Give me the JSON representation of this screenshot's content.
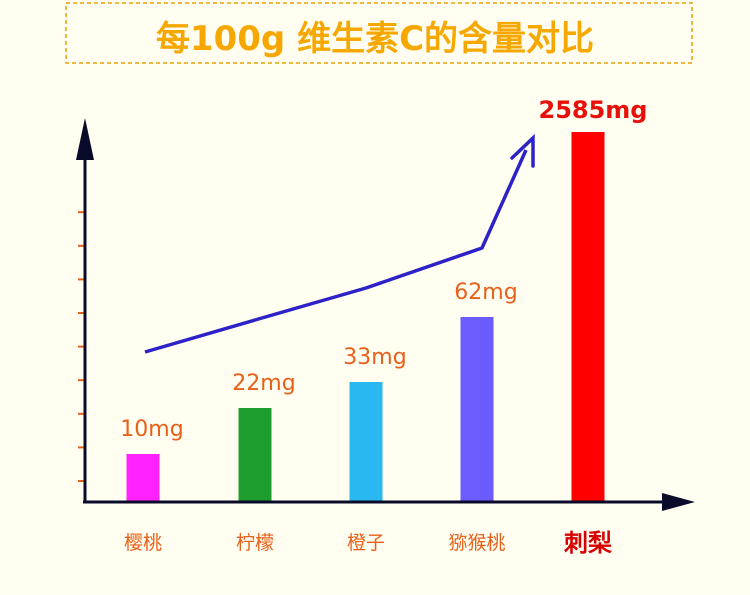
{
  "chart_data": {
    "type": "bar",
    "title": "每100g  维生素C的含量对比",
    "categories": [
      "樱桃",
      "柠檬",
      "橙子",
      "猕猴桃",
      "刺梨"
    ],
    "values": [
      10,
      22,
      33,
      62,
      2585
    ],
    "value_labels": [
      "10mg",
      "22mg",
      "33mg",
      "62mg",
      "2585mg"
    ],
    "unit": "mg",
    "highlight_category": "刺梨",
    "colors": [
      "#ff22ff",
      "#1e9e2e",
      "#2ab8f0",
      "#6a5cff",
      "#ff0000"
    ],
    "axis_color": "#0a0a2a",
    "tick_color": "#e8601a",
    "trend_color": "#2c22c8",
    "title_color": "#f7a800",
    "title_border_color": "#e8a000",
    "background": "#fffef0",
    "grid": false,
    "legend": "none",
    "y_axis_scale": "broken"
  }
}
